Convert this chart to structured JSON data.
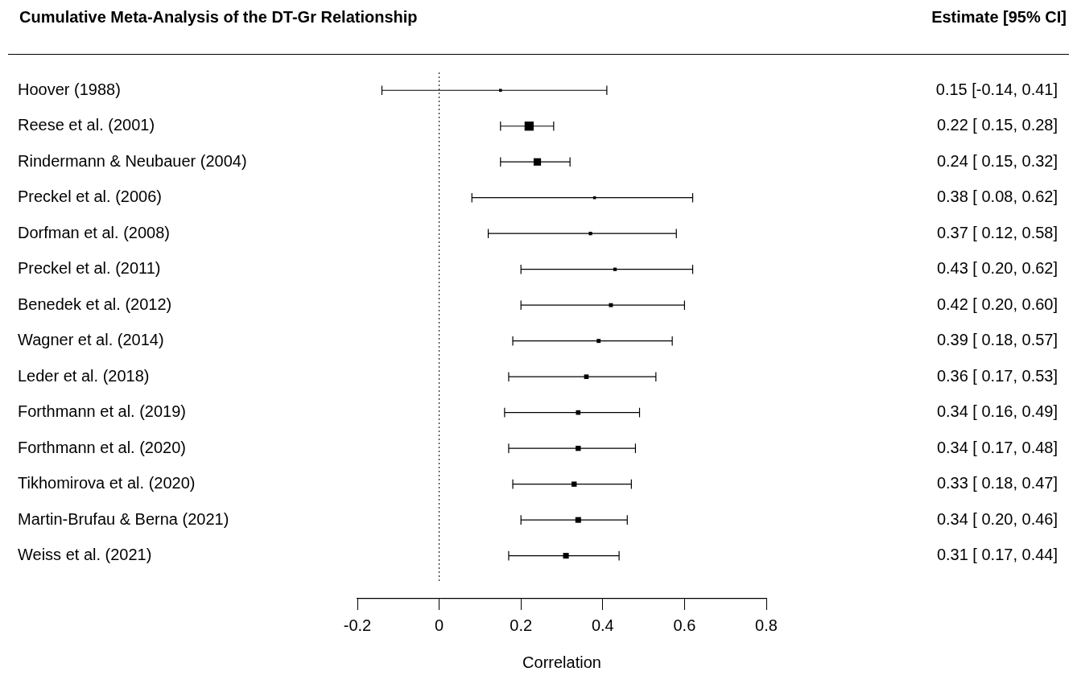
{
  "chart_data": {
    "type": "bubble",
    "title": "Cumulative Meta-Analysis of the DT-Gr Relationship",
    "xlabel": "Correlation",
    "annotations": [
      "Estimate [95% CI]"
    ],
    "categories": [
      "Hoover (1988)",
      "Reese et al. (2001)",
      "Rindermann & Neubauer (2004)",
      "Preckel et al. (2006)",
      "Dorfman et al. (2008)",
      "Preckel et al. (2011)",
      "Benedek et al. (2012)",
      "Wagner et al. (2014)",
      "Leder et al. (2018)",
      "Forthmann et al. (2019)",
      "Forthmann et al. (2020)",
      "Tikhomirova et al. (2020)",
      "Martin-Brufau & Berna (2021)",
      "Weiss et al. (2021)"
    ],
    "values": [
      0.15,
      0.22,
      0.24,
      0.38,
      0.37,
      0.43,
      0.42,
      0.39,
      0.36,
      0.34,
      0.34,
      0.33,
      0.34,
      0.31
    ],
    "errors": [
      [
        -0.14,
        0.41
      ],
      [
        0.15,
        0.28
      ],
      [
        0.15,
        0.32
      ],
      [
        0.08,
        0.62
      ],
      [
        0.12,
        0.58
      ],
      [
        0.2,
        0.62
      ],
      [
        0.2,
        0.6
      ],
      [
        0.18,
        0.57
      ],
      [
        0.17,
        0.53
      ],
      [
        0.16,
        0.49
      ],
      [
        0.17,
        0.48
      ],
      [
        0.18,
        0.47
      ],
      [
        0.2,
        0.46
      ],
      [
        0.17,
        0.44
      ]
    ],
    "sizes": [
      0.1,
      1,
      0.66,
      0.1,
      0.14,
      0.14,
      0.19,
      0.19,
      0.25,
      0.25,
      0.32,
      0.32,
      0.39,
      0.39
    ],
    "value_labels": [
      "0.15 [-0.14, 0.41]",
      "0.22 [ 0.15, 0.28]",
      "0.24 [ 0.15, 0.32]",
      "0.38 [ 0.08, 0.62]",
      "0.37 [ 0.12, 0.58]",
      "0.43 [ 0.20, 0.62]",
      "0.42 [ 0.20, 0.60]",
      "0.39 [ 0.18, 0.57]",
      "0.36 [ 0.17, 0.53]",
      "0.34 [ 0.16, 0.49]",
      "0.34 [ 0.17, 0.48]",
      "0.33 [ 0.18, 0.47]",
      "0.34 [ 0.20, 0.46]",
      "0.31 [ 0.17, 0.44]"
    ],
    "color": "#000000",
    "xlim": [
      -0.2,
      0.8
    ],
    "xticks": [
      -0.2,
      0,
      0.2,
      0.4,
      0.6,
      0.8
    ],
    "ref_lines": [
      {
        "axis": "x",
        "value": 0,
        "line_style": "dotted",
        "color": "#000000"
      }
    ],
    "orientation": "horizontal",
    "marker": "square",
    "grid": false,
    "legend": false
  }
}
